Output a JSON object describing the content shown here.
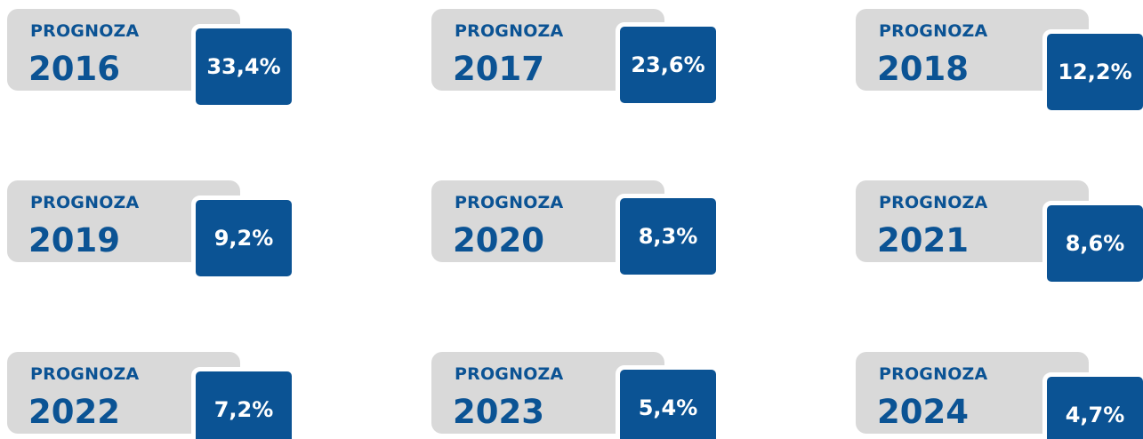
{
  "cards": [
    {
      "label": "PROGNOZA",
      "year": "2016",
      "value": "33,4%"
    },
    {
      "label": "PROGNOZA",
      "year": "2017",
      "value": "23,6%"
    },
    {
      "label": "PROGNOZA",
      "year": "2018",
      "value": "12,2%"
    },
    {
      "label": "PROGNOZA",
      "year": "2019",
      "value": "9,2%"
    },
    {
      "label": "PROGNOZA",
      "year": "2020",
      "value": "8,3%"
    },
    {
      "label": "PROGNOZA",
      "year": "2021",
      "value": "8,6%"
    },
    {
      "label": "PROGNOZA",
      "year": "2022",
      "value": "7,2%"
    },
    {
      "label": "PROGNOZA",
      "year": "2023",
      "value": "5,4%"
    },
    {
      "label": "PROGNOZA",
      "year": "2024",
      "value": "4,7%"
    }
  ]
}
